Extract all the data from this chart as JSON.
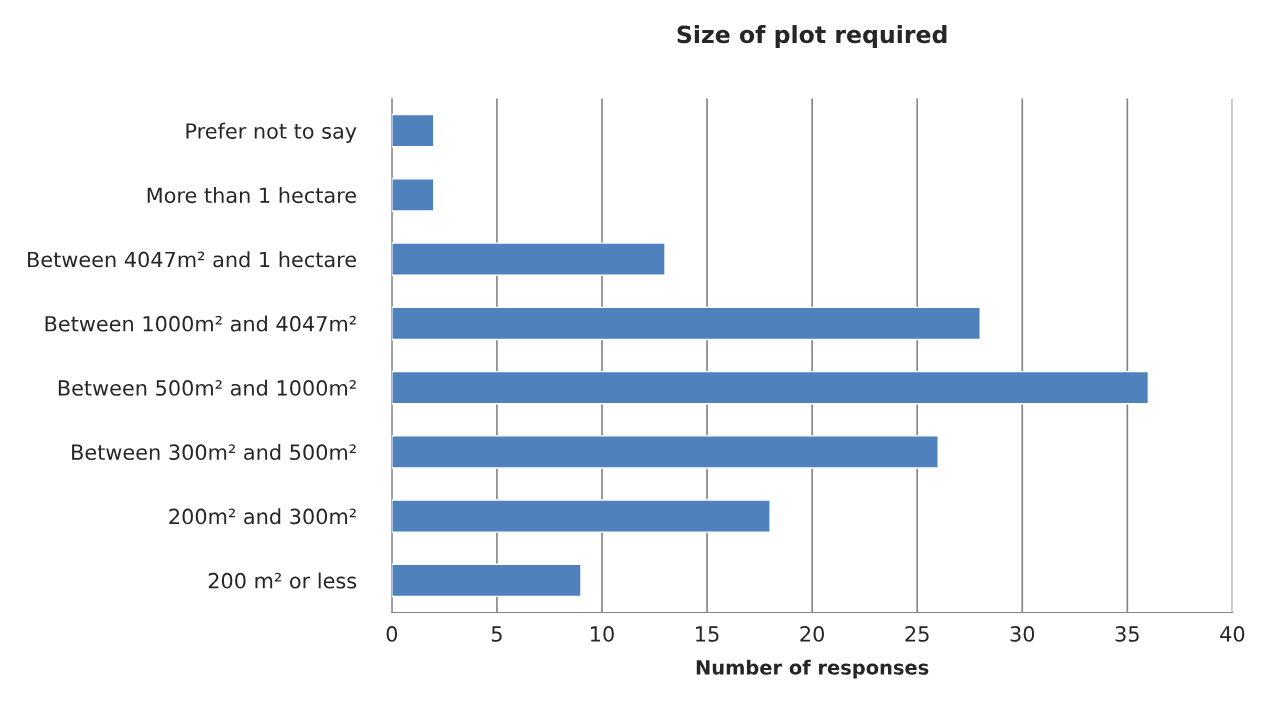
{
  "chart_data": {
    "type": "bar",
    "orientation": "horizontal",
    "title": "Size of plot required",
    "xlabel": "Number of responses",
    "categories": [
      "Prefer not to say",
      "More than 1 hectare",
      "Between 4047m² and 1 hectare",
      "Between 1000m² and 4047m²",
      "Between 500m² and 1000m²",
      "Between 300m² and 500m²",
      "200m² and 300m²",
      "200 m² or less"
    ],
    "values": [
      2,
      2,
      13,
      28,
      36,
      26,
      18,
      9
    ],
    "color": "#4f81bd",
    "xlim": [
      0,
      40
    ],
    "xticks": [
      0,
      5,
      10,
      15,
      20,
      25,
      30,
      35,
      40
    ],
    "grid": "x"
  }
}
